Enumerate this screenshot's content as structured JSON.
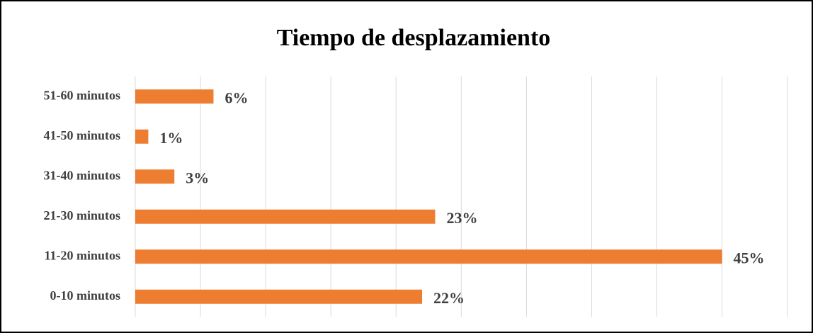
{
  "chart_data": {
    "type": "bar",
    "orientation": "horizontal",
    "title": "Tiempo de desplazamiento",
    "categories": [
      "51-60 minutos",
      "41-50 minutos",
      "31-40 minutos",
      "21-30 minutos",
      "11-20 minutos",
      "0-10 minutos"
    ],
    "values": [
      6,
      1,
      3,
      23,
      45,
      22
    ],
    "value_labels": [
      "6%",
      "1%",
      "3%",
      "23%",
      "45%",
      "22%"
    ],
    "color": "#ed7d31",
    "xlim": [
      0,
      51
    ],
    "xticks": [
      0,
      5,
      10,
      15,
      20,
      25,
      30,
      35,
      40,
      45,
      50
    ],
    "grid": true
  }
}
